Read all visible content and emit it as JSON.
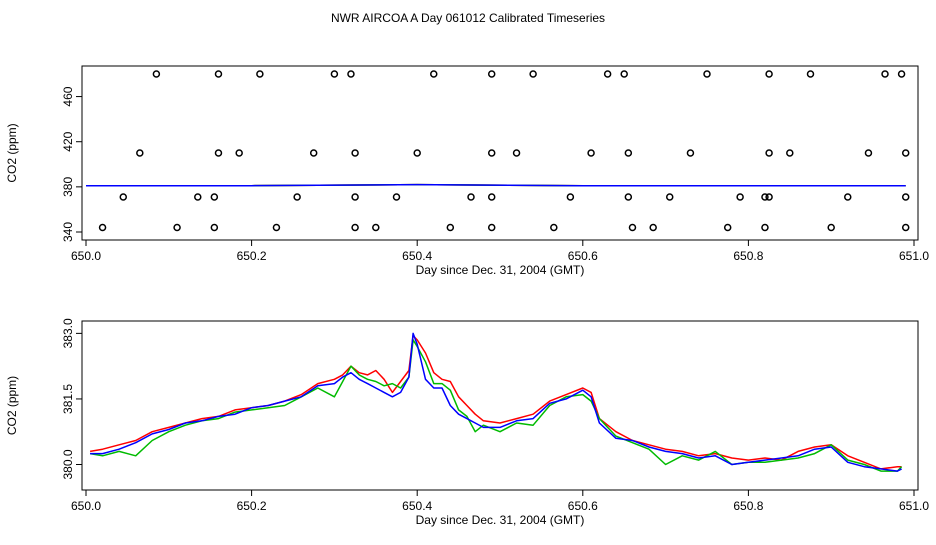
{
  "title": "NWR AIRCOA A  Day 061012  Calibrated Timeseries",
  "chart_data": [
    {
      "type": "line",
      "xlabel": "Day since Dec. 31, 2004 (GMT)",
      "ylabel": "CO2 (ppm)",
      "xlim": [
        650.0,
        651.0
      ],
      "ylim": [
        340,
        480
      ],
      "xticks": [
        650.0,
        650.2,
        650.4,
        650.6,
        650.8,
        651.0
      ],
      "xtick_labels": [
        "650.0",
        "650.2",
        "650.4",
        "650.6",
        "650.8",
        "651.0"
      ],
      "yticks": [
        340,
        380,
        420,
        460
      ],
      "ytick_labels": [
        "340",
        "380",
        "420",
        "460"
      ],
      "grid": false,
      "series": [
        {
          "color": "#ff0000",
          "x": [
            650.0,
            650.2,
            650.4,
            650.6,
            650.8,
            650.99
          ],
          "y": [
            381,
            381,
            382,
            381,
            381,
            381
          ]
        },
        {
          "color": "#00bb00",
          "x": [
            650.0,
            650.2,
            650.4,
            650.6,
            650.8,
            650.99
          ],
          "y": [
            381,
            381,
            382,
            381,
            381,
            381
          ]
        },
        {
          "color": "#0000ff",
          "x": [
            650.0,
            650.2,
            650.4,
            650.6,
            650.8,
            650.99
          ],
          "y": [
            381,
            381,
            382,
            381,
            381,
            381
          ]
        }
      ],
      "points": {
        "marker": "open-circle",
        "x": [
          650.085,
          650.16,
          650.21,
          650.3,
          650.32,
          650.42,
          650.49,
          650.54,
          650.63,
          650.65,
          650.75,
          650.825,
          650.875,
          650.965,
          650.985,
          650.065,
          650.16,
          650.185,
          650.275,
          650.325,
          650.4,
          650.49,
          650.52,
          650.61,
          650.655,
          650.73,
          650.825,
          650.85,
          650.945,
          650.99,
          650.045,
          650.135,
          650.155,
          650.255,
          650.325,
          650.375,
          650.465,
          650.49,
          650.585,
          650.655,
          650.705,
          650.79,
          650.82,
          650.825,
          650.92,
          650.99,
          650.02,
          650.11,
          650.155,
          650.23,
          650.325,
          650.35,
          650.44,
          650.49,
          650.565,
          650.66,
          650.685,
          650.775,
          650.82,
          650.9,
          650.99
        ],
        "y": [
          480,
          480,
          480,
          480,
          480,
          480,
          480,
          480,
          480,
          480,
          480,
          480,
          480,
          480,
          480,
          410,
          410,
          410,
          410,
          410,
          410,
          410,
          410,
          410,
          410,
          410,
          410,
          410,
          410,
          410,
          371,
          371,
          371,
          371,
          371,
          371,
          371,
          371,
          371,
          371,
          371,
          371,
          371,
          371,
          371,
          371,
          344,
          344,
          344,
          344,
          344,
          344,
          344,
          344,
          344,
          344,
          344,
          344,
          344,
          344,
          344
        ]
      }
    },
    {
      "type": "line",
      "xlabel": "Day since Dec. 31, 2004 (GMT)",
      "ylabel": "CO2 (ppm)",
      "xlim": [
        650.0,
        651.0
      ],
      "ylim": [
        379.6,
        383.1
      ],
      "xticks": [
        650.0,
        650.2,
        650.4,
        650.6,
        650.8,
        651.0
      ],
      "xtick_labels": [
        "650.0",
        "650.2",
        "650.4",
        "650.6",
        "650.8",
        "651.0"
      ],
      "yticks": [
        380.0,
        381.5,
        383.0
      ],
      "ytick_labels": [
        "380.0",
        "381.5",
        "383.0"
      ],
      "grid": false,
      "series": [
        {
          "color": "#ff0000",
          "x": [
            650.005,
            650.02,
            650.04,
            650.06,
            650.08,
            650.1,
            650.12,
            650.14,
            650.16,
            650.18,
            650.2,
            650.22,
            650.24,
            650.26,
            650.28,
            650.3,
            650.31,
            650.32,
            650.33,
            650.34,
            650.35,
            650.36,
            650.37,
            650.38,
            650.39,
            650.395,
            650.4,
            650.41,
            650.42,
            650.43,
            650.44,
            650.45,
            650.46,
            650.47,
            650.48,
            650.5,
            650.52,
            650.54,
            650.56,
            650.58,
            650.6,
            650.61,
            650.62,
            650.64,
            650.66,
            650.68,
            650.7,
            650.72,
            650.74,
            650.76,
            650.78,
            650.8,
            650.82,
            650.84,
            650.86,
            650.88,
            650.9,
            650.92,
            650.94,
            650.96,
            650.98,
            650.985
          ],
          "y": [
            380.3,
            380.35,
            380.45,
            380.55,
            380.75,
            380.85,
            380.95,
            381.05,
            381.1,
            381.25,
            381.3,
            381.35,
            381.45,
            381.6,
            381.85,
            381.95,
            382.05,
            382.25,
            382.1,
            382.05,
            382.15,
            381.95,
            381.65,
            381.9,
            382.15,
            382.95,
            382.85,
            382.55,
            382.1,
            381.95,
            381.9,
            381.55,
            381.35,
            381.15,
            381.0,
            380.95,
            381.05,
            381.15,
            381.45,
            381.6,
            381.75,
            381.65,
            381.05,
            380.75,
            380.55,
            380.45,
            380.35,
            380.3,
            380.2,
            380.25,
            380.15,
            380.1,
            380.15,
            380.1,
            380.3,
            380.4,
            380.45,
            380.2,
            380.05,
            379.9,
            379.95,
            379.95
          ]
        },
        {
          "color": "#00bb00",
          "x": [
            650.005,
            650.02,
            650.04,
            650.06,
            650.08,
            650.1,
            650.12,
            650.14,
            650.16,
            650.18,
            650.2,
            650.22,
            650.24,
            650.26,
            650.28,
            650.3,
            650.31,
            650.32,
            650.33,
            650.34,
            650.35,
            650.36,
            650.37,
            650.38,
            650.39,
            650.395,
            650.4,
            650.41,
            650.42,
            650.43,
            650.44,
            650.45,
            650.46,
            650.47,
            650.48,
            650.5,
            650.52,
            650.54,
            650.56,
            650.58,
            650.6,
            650.61,
            650.62,
            650.64,
            650.66,
            650.68,
            650.7,
            650.72,
            650.74,
            650.76,
            650.78,
            650.8,
            650.82,
            650.84,
            650.86,
            650.88,
            650.9,
            650.92,
            650.94,
            650.96,
            650.98,
            650.985
          ],
          "y": [
            380.25,
            380.2,
            380.3,
            380.2,
            380.55,
            380.75,
            380.9,
            381.0,
            381.05,
            381.2,
            381.25,
            381.3,
            381.35,
            381.55,
            381.75,
            381.55,
            381.9,
            382.25,
            382.05,
            381.95,
            381.9,
            381.8,
            381.85,
            381.75,
            382.0,
            382.85,
            382.7,
            382.35,
            381.85,
            381.85,
            381.7,
            381.25,
            381.1,
            380.75,
            380.9,
            380.75,
            380.95,
            380.9,
            381.35,
            381.55,
            381.6,
            381.45,
            381.05,
            380.65,
            380.5,
            380.35,
            380.0,
            380.2,
            380.1,
            380.3,
            380.0,
            380.05,
            380.05,
            380.1,
            380.15,
            380.25,
            380.45,
            380.1,
            380.0,
            379.85,
            379.85,
            379.95
          ]
        },
        {
          "color": "#0000ff",
          "x": [
            650.005,
            650.02,
            650.04,
            650.06,
            650.08,
            650.1,
            650.12,
            650.14,
            650.16,
            650.18,
            650.2,
            650.22,
            650.24,
            650.26,
            650.28,
            650.3,
            650.31,
            650.32,
            650.33,
            650.34,
            650.35,
            650.36,
            650.37,
            650.38,
            650.39,
            650.395,
            650.4,
            650.41,
            650.42,
            650.43,
            650.44,
            650.45,
            650.46,
            650.47,
            650.48,
            650.5,
            650.52,
            650.54,
            650.56,
            650.58,
            650.6,
            650.61,
            650.62,
            650.64,
            650.66,
            650.68,
            650.7,
            650.72,
            650.74,
            650.76,
            650.78,
            650.8,
            650.82,
            650.84,
            650.86,
            650.88,
            650.9,
            650.92,
            650.94,
            650.96,
            650.98,
            650.985
          ],
          "y": [
            380.25,
            380.25,
            380.35,
            380.5,
            380.7,
            380.8,
            380.95,
            381.0,
            381.1,
            381.15,
            381.3,
            381.35,
            381.45,
            381.55,
            381.8,
            381.85,
            382.0,
            382.1,
            381.95,
            381.85,
            381.75,
            381.65,
            381.55,
            381.65,
            382.0,
            383.0,
            382.75,
            381.95,
            381.75,
            381.75,
            381.35,
            381.15,
            381.05,
            380.95,
            380.85,
            380.85,
            381.0,
            381.05,
            381.4,
            381.5,
            381.7,
            381.55,
            380.95,
            380.6,
            380.55,
            380.4,
            380.3,
            380.25,
            380.15,
            380.2,
            380.0,
            380.05,
            380.1,
            380.15,
            380.2,
            380.35,
            380.4,
            380.05,
            379.95,
            379.9,
            379.85,
            379.9
          ]
        }
      ]
    }
  ]
}
